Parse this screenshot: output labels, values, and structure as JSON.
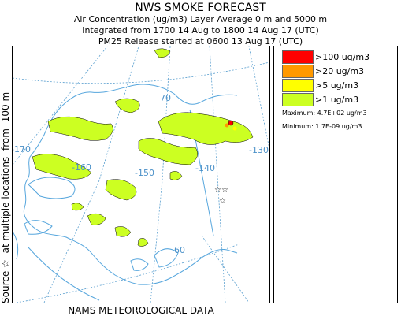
{
  "header": {
    "title": "NWS SMOKE FORECAST",
    "line1": "Air Concentration (ug/m3) Layer Average    0 m and  5000 m",
    "line2": "Integrated from 1700 14 Aug to 1800 14 Aug 17 (UTC)",
    "line3": "PM25 Release started at 0600 13 Aug 17 (UTC)"
  },
  "footer": "NAMS METEOROLOGICAL DATA",
  "side": {
    "source": "Source ☆",
    "locations": "at multiple locations",
    "from": "from",
    "height": "100 m"
  },
  "legend": [
    {
      "label": ">100 ug/m3",
      "color": "#ff0000"
    },
    {
      "label": ">20 ug/m3",
      "color": "#ff9900"
    },
    {
      "label": ">5 ug/m3",
      "color": "#ffff00"
    },
    {
      "label": ">1 ug/m3",
      "color": "#ccff22"
    }
  ],
  "stats": {
    "maximum": "Maximum: 4.7E+02 ug/m3",
    "minimum": "Minimum: 1.7E-09 ug/m3"
  },
  "map_labels": {
    "lat70": "70",
    "lat60": "60",
    "lon170": "-170",
    "lon160": "-160",
    "lon150": "-150",
    "lon140": "-140",
    "lon130": "-130"
  }
}
